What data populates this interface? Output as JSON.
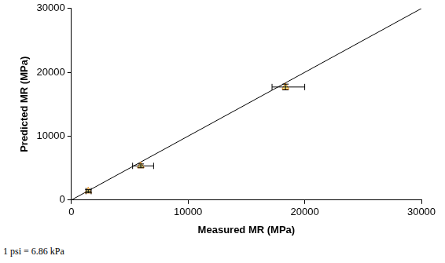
{
  "chart_data": {
    "type": "scatter",
    "x_label": "Measured MR (MPa)",
    "y_label": "Predicted MR (MPa)",
    "note": "1 psi = 6.86 kPa",
    "xlim": [
      0,
      30000
    ],
    "xticks": [
      0,
      10000,
      20000,
      30000
    ],
    "ylim": [
      0,
      30000
    ],
    "yticks": [
      0,
      10000,
      20000,
      30000
    ],
    "grid": false,
    "series": [
      {
        "type": "scatter",
        "marker": "triangle",
        "color": "#e08020",
        "x": [
          1450,
          5950,
          18350
        ],
        "values": [
          1400,
          5350,
          17700
        ],
        "x_error_range": [
          [
            1250,
            1700
          ],
          [
            5250,
            7050
          ],
          [
            17200,
            20000
          ]
        ],
        "y_error_range": [
          [
            1150,
            1650
          ],
          [
            5050,
            5650
          ],
          [
            17250,
            18150
          ]
        ]
      },
      {
        "type": "line",
        "line_style": "solid",
        "color": "#000000",
        "x": [
          0,
          30000
        ],
        "values": [
          0,
          30000
        ]
      }
    ]
  }
}
